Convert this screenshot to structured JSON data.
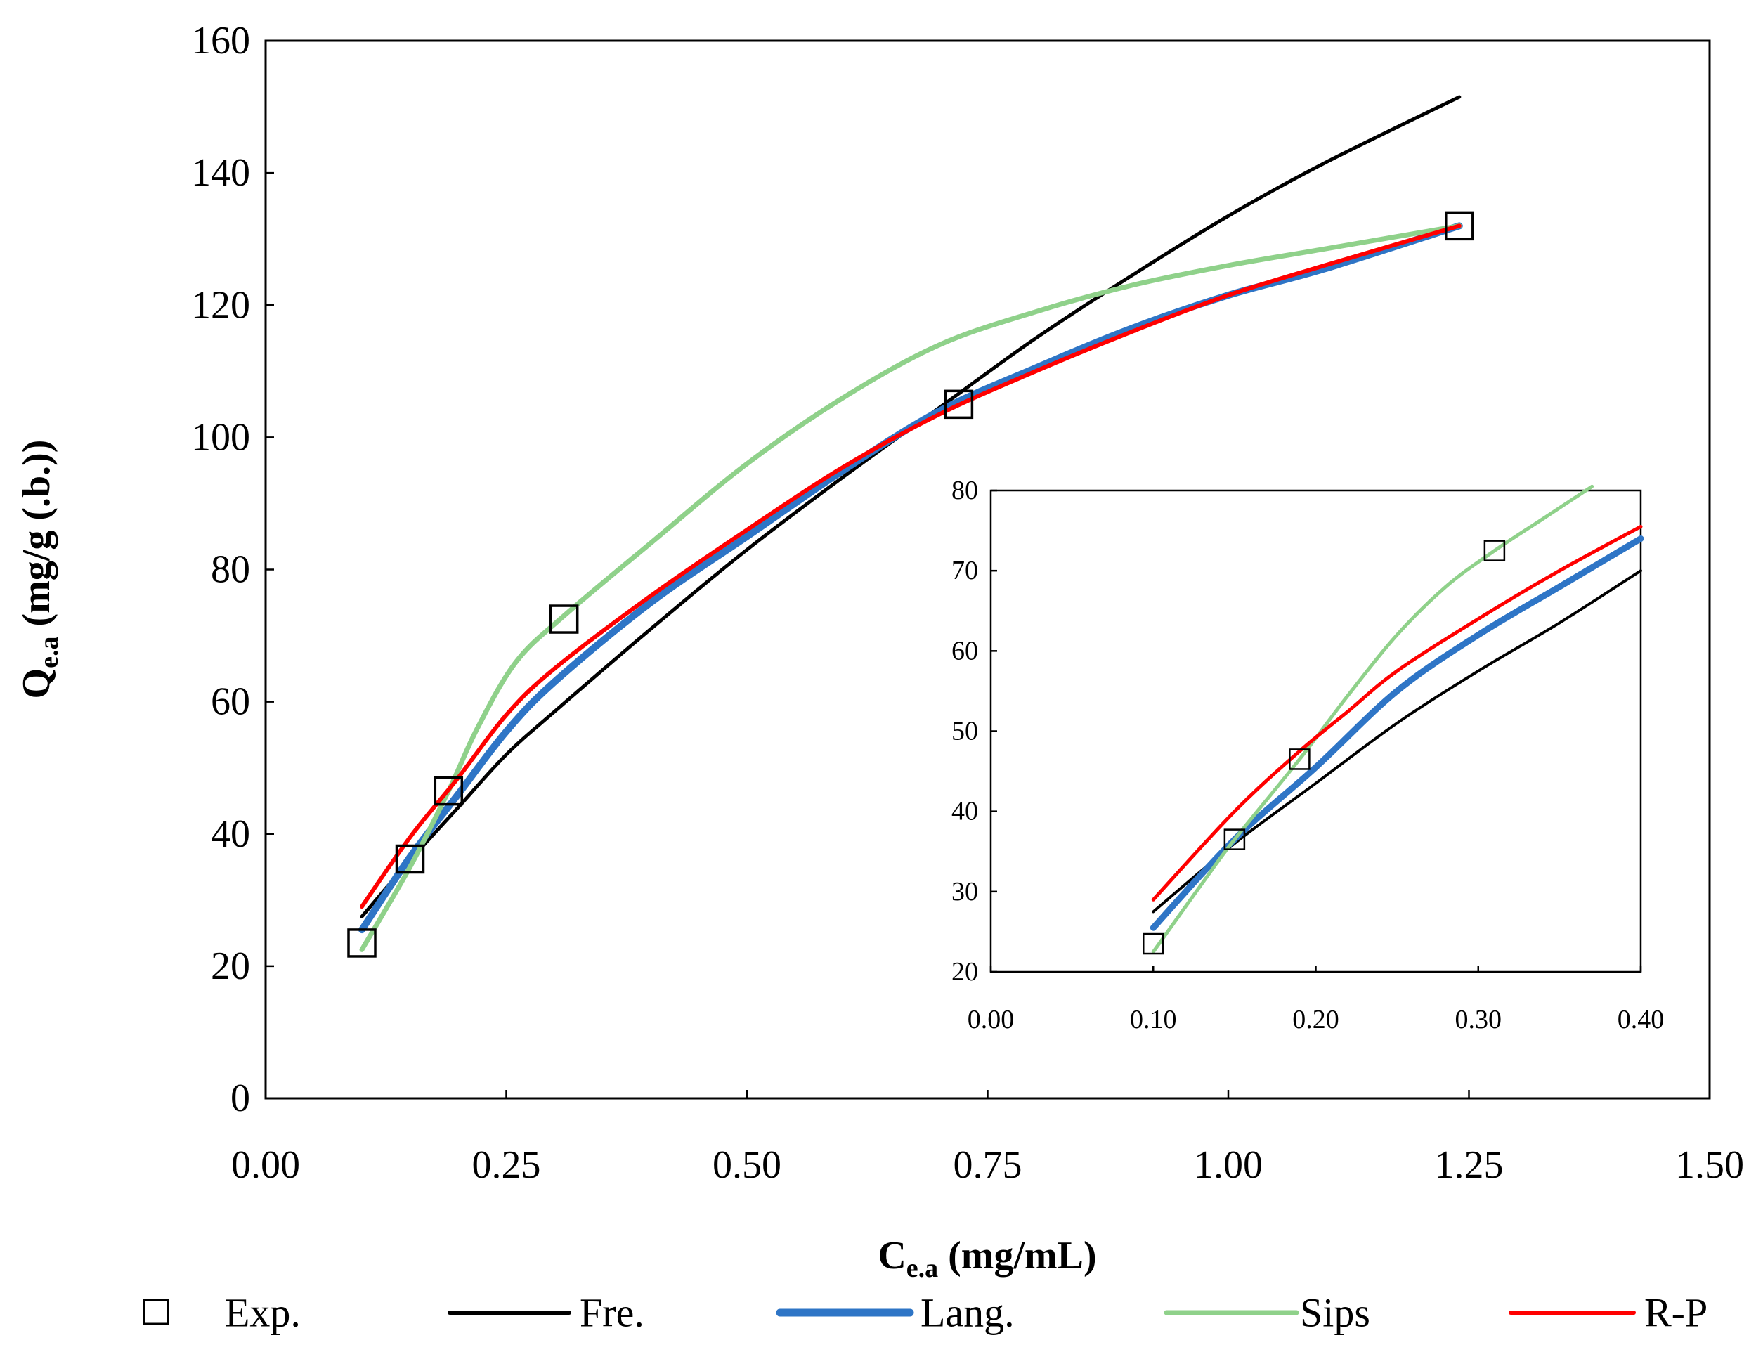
{
  "chart_data": [
    {
      "id": "main",
      "type": "line",
      "xlabel": "C",
      "xlabel_sub": "e.a",
      "xlabel_unit": " (mg/mL)",
      "ylabel": "Q",
      "ylabel_sub": "e.a",
      "ylabel_unit": " (mg/g (.b.))",
      "xlim": [
        0,
        1.5
      ],
      "ylim": [
        0,
        160
      ],
      "xticks": [
        0,
        0.25,
        0.5,
        0.75,
        1.0,
        1.25,
        1.5
      ],
      "xtick_labels": [
        "0.00",
        "0.25",
        "0.50",
        "0.75",
        "1.00",
        "1.25",
        "1.50"
      ],
      "yticks": [
        0,
        20,
        40,
        60,
        80,
        100,
        120,
        140,
        160
      ],
      "ytick_labels": [
        "0",
        "20",
        "40",
        "60",
        "80",
        "100",
        "120",
        "140",
        "160"
      ],
      "grid": false,
      "legend_position": "bottom",
      "series": [
        {
          "name": "Exp.",
          "kind": "scatter",
          "marker": "square",
          "color": "#000000",
          "x": [
            0.1,
            0.15,
            0.19,
            0.31,
            0.72,
            1.24
          ],
          "y": [
            23.5,
            36.2,
            46.5,
            72.5,
            105,
            132
          ]
        },
        {
          "name": "Fre.",
          "kind": "line",
          "color": "#000000",
          "x": [
            0.1,
            0.15,
            0.2,
            0.25,
            0.3,
            0.4,
            0.5,
            0.6,
            0.7,
            0.8,
            0.9,
            1.0,
            1.1,
            1.24
          ],
          "y": [
            27.5,
            36,
            44,
            52,
            58.5,
            71,
            83,
            94,
            104.5,
            115,
            124.5,
            133.5,
            141.5,
            151.5
          ]
        },
        {
          "name": "Lang.",
          "kind": "line",
          "color": "#2E75C6",
          "x": [
            0.1,
            0.15,
            0.2,
            0.25,
            0.3,
            0.4,
            0.5,
            0.6,
            0.7,
            0.8,
            0.9,
            1.0,
            1.1,
            1.24
          ],
          "y": [
            25.5,
            36.5,
            46,
            55.5,
            63,
            75,
            85,
            95,
            104,
            110.5,
            116.5,
            121.5,
            125.5,
            132
          ]
        },
        {
          "name": "Sips",
          "kind": "line",
          "color": "#8FD18A",
          "x": [
            0.1,
            0.15,
            0.19,
            0.22,
            0.26,
            0.31,
            0.4,
            0.5,
            0.6,
            0.7,
            0.8,
            0.9,
            1.0,
            1.1,
            1.24
          ],
          "y": [
            22.5,
            35,
            46.5,
            56,
            66,
            73,
            84,
            96,
            106,
            114,
            119,
            123,
            126,
            128.5,
            132
          ]
        },
        {
          "name": "R-P",
          "kind": "line",
          "color": "#FF0000",
          "x": [
            0.1,
            0.15,
            0.2,
            0.25,
            0.3,
            0.4,
            0.5,
            0.6,
            0.7,
            0.8,
            0.9,
            1.0,
            1.1,
            1.24
          ],
          "y": [
            29,
            39.5,
            48.5,
            58,
            65,
            76,
            86,
            95.5,
            103.5,
            110,
            116,
            121.5,
            126,
            132
          ]
        }
      ]
    },
    {
      "id": "inset",
      "type": "line",
      "xlim": [
        0,
        0.4
      ],
      "ylim": [
        20,
        80
      ],
      "xticks": [
        0,
        0.1,
        0.2,
        0.3,
        0.4
      ],
      "xtick_labels": [
        "0.00",
        "0.10",
        "0.20",
        "0.30",
        "0.40"
      ],
      "yticks": [
        20,
        30,
        40,
        50,
        60,
        70,
        80
      ],
      "ytick_labels": [
        "20",
        "30",
        "40",
        "50",
        "60",
        "70",
        "80"
      ],
      "grid": false,
      "series": [
        {
          "name": "Exp.",
          "kind": "scatter",
          "marker": "square",
          "color": "#000000",
          "x": [
            0.1,
            0.15,
            0.19,
            0.31
          ],
          "y": [
            23.5,
            36.5,
            46.5,
            72.5
          ]
        },
        {
          "name": "Fre.",
          "kind": "line",
          "color": "#000000",
          "x": [
            0.1,
            0.15,
            0.2,
            0.25,
            0.3,
            0.35,
            0.4
          ],
          "y": [
            27.5,
            36,
            43.5,
            51,
            57.5,
            63.5,
            70
          ]
        },
        {
          "name": "Lang.",
          "kind": "line",
          "color": "#2E75C6",
          "x": [
            0.1,
            0.15,
            0.2,
            0.25,
            0.3,
            0.35,
            0.4
          ],
          "y": [
            25.5,
            36.5,
            45.5,
            55,
            62,
            68,
            74
          ]
        },
        {
          "name": "Sips",
          "kind": "line",
          "color": "#8FD18A",
          "x": [
            0.1,
            0.13,
            0.15,
            0.19,
            0.22,
            0.25,
            0.28,
            0.31,
            0.34,
            0.37
          ],
          "y": [
            22.5,
            31,
            36.5,
            46.5,
            54.5,
            62,
            68,
            72.5,
            76.5,
            80.5
          ]
        },
        {
          "name": "R-P",
          "kind": "line",
          "color": "#FF0000",
          "x": [
            0.1,
            0.15,
            0.19,
            0.22,
            0.25,
            0.3,
            0.35,
            0.4
          ],
          "y": [
            29,
            40,
            47.5,
            52.5,
            57.5,
            64,
            70,
            75.5
          ]
        }
      ]
    }
  ],
  "legend": [
    {
      "label": "Exp.",
      "kind": "marker",
      "color": "#000000"
    },
    {
      "label": "Fre.",
      "kind": "line",
      "color": "#000000"
    },
    {
      "label": "Lang.",
      "kind": "line",
      "color": "#2E75C6"
    },
    {
      "label": "Sips",
      "kind": "line",
      "color": "#8FD18A"
    },
    {
      "label": "R-P",
      "kind": "line",
      "color": "#FF0000"
    }
  ]
}
